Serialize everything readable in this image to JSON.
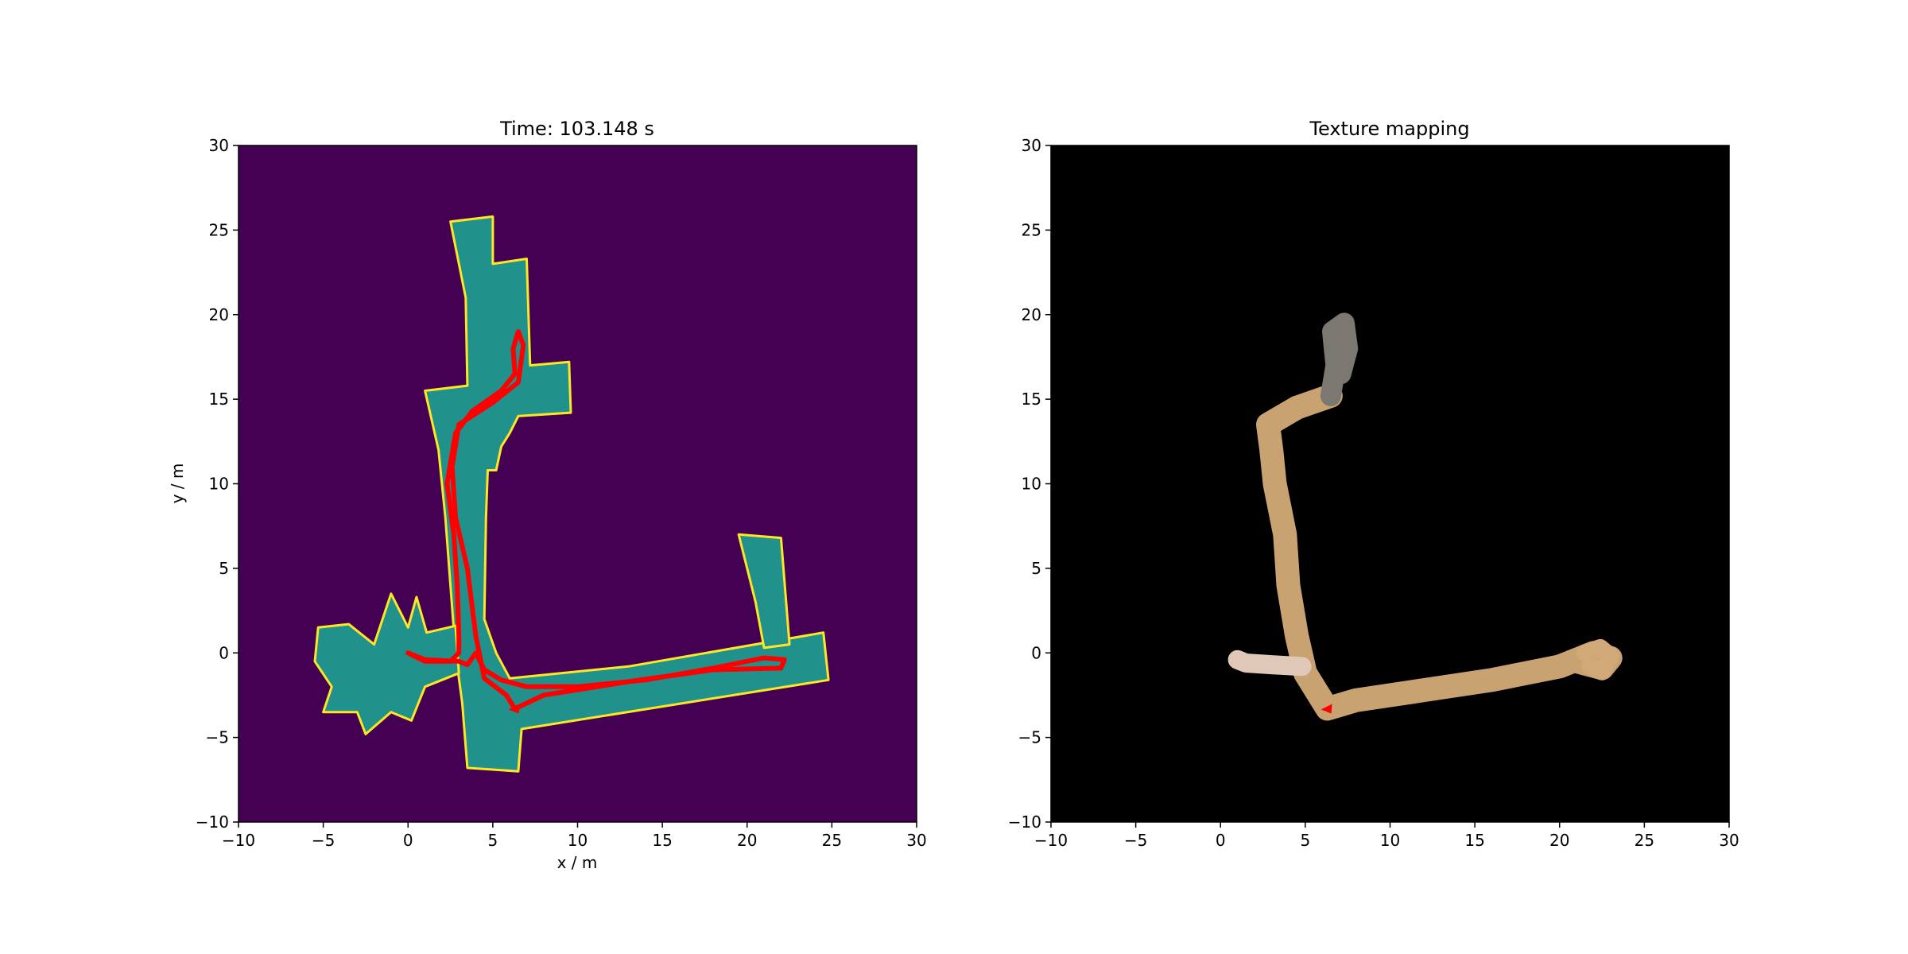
{
  "chart_data": [
    {
      "type": "heatmap",
      "title": "Time: 103.148 s",
      "xlabel": "x / m",
      "ylabel": "y / m",
      "xlim": [
        -10,
        30
      ],
      "ylim": [
        -10,
        30
      ],
      "xticks": [
        "−10",
        "−5",
        "0",
        "5",
        "10",
        "15",
        "20",
        "25",
        "30"
      ],
      "yticks": [
        "−10",
        "−5",
        "0",
        "5",
        "10",
        "15",
        "20",
        "25",
        "30"
      ],
      "colors": {
        "background": "#440154",
        "free": "#21918c",
        "occupied": "#fde725",
        "trajectory": "#ff0000"
      },
      "map_regions": [
        [
          [
            2.5,
            25.5
          ],
          [
            5,
            25.8
          ],
          [
            5,
            23
          ],
          [
            7,
            23.3
          ],
          [
            7.2,
            17
          ],
          [
            9.5,
            17.2
          ],
          [
            9.6,
            14.2
          ],
          [
            6.5,
            14
          ],
          [
            6,
            13
          ],
          [
            5.5,
            12.2
          ],
          [
            5.2,
            10.8
          ],
          [
            4.7,
            10.8
          ],
          [
            4.6,
            8
          ],
          [
            4.5,
            2
          ],
          [
            5.2,
            0
          ],
          [
            6,
            -1.5
          ],
          [
            13,
            -0.8
          ],
          [
            24.5,
            1.2
          ],
          [
            24.8,
            -1.6
          ],
          [
            6.7,
            -4.5
          ],
          [
            6.5,
            -7
          ],
          [
            3.5,
            -6.8
          ],
          [
            3.2,
            -3
          ],
          [
            2.8,
            0
          ],
          [
            2.2,
            8
          ],
          [
            1.8,
            12
          ],
          [
            1,
            15.5
          ],
          [
            3.5,
            15.8
          ],
          [
            3.4,
            21
          ],
          [
            2.5,
            25.5
          ]
        ],
        [
          [
            -5.3,
            1.5
          ],
          [
            -3.5,
            1.7
          ],
          [
            -2,
            0.5
          ],
          [
            -1,
            3.5
          ],
          [
            0,
            1.5
          ],
          [
            0.5,
            3.3
          ],
          [
            1.1,
            1.2
          ],
          [
            2.8,
            1.6
          ],
          [
            3,
            -1.2
          ],
          [
            1,
            -2
          ],
          [
            0.2,
            -4
          ],
          [
            -1,
            -3.5
          ],
          [
            -2.5,
            -4.8
          ],
          [
            -3,
            -3.5
          ],
          [
            -5,
            -3.5
          ],
          [
            -4.5,
            -2
          ],
          [
            -5.5,
            -0.5
          ],
          [
            -5.3,
            1.5
          ]
        ],
        [
          [
            19.5,
            7
          ],
          [
            22,
            6.8
          ],
          [
            22.5,
            0.5
          ],
          [
            21,
            0.3
          ],
          [
            20.5,
            3
          ],
          [
            19.5,
            7
          ]
        ]
      ],
      "trajectory": [
        [
          0,
          0
        ],
        [
          1,
          -0.4
        ],
        [
          3,
          -0.5
        ],
        [
          3.5,
          -0.7
        ],
        [
          4,
          0
        ],
        [
          4.5,
          -1
        ],
        [
          5.5,
          -1.6
        ],
        [
          7,
          -2
        ],
        [
          10,
          -2
        ],
        [
          14,
          -1.6
        ],
        [
          18,
          -0.9
        ],
        [
          21,
          -0.3
        ],
        [
          22.2,
          -0.4
        ],
        [
          22,
          -0.9
        ],
        [
          18,
          -1
        ],
        [
          13,
          -1.7
        ],
        [
          8,
          -2.5
        ],
        [
          6.3,
          -3.3
        ],
        [
          5.8,
          -2.5
        ],
        [
          4.5,
          -1.5
        ],
        [
          4,
          1
        ],
        [
          3.5,
          5
        ],
        [
          2.8,
          8
        ],
        [
          2.6,
          11
        ],
        [
          3,
          13.5
        ],
        [
          5,
          14.8
        ],
        [
          6.5,
          16
        ],
        [
          6.8,
          18.2
        ],
        [
          6.5,
          19
        ],
        [
          6.2,
          18
        ],
        [
          6.3,
          16.5
        ],
        [
          5.5,
          15.5
        ],
        [
          3.8,
          14.3
        ],
        [
          2.8,
          13
        ],
        [
          2.3,
          10
        ],
        [
          2.7,
          7
        ],
        [
          2.9,
          4
        ],
        [
          3,
          1
        ],
        [
          3,
          0
        ],
        [
          2.5,
          -0.5
        ],
        [
          1,
          -0.5
        ],
        [
          0,
          0
        ]
      ]
    },
    {
      "type": "heatmap",
      "title": "Texture mapping",
      "xlabel": "",
      "ylabel": "",
      "xlim": [
        -10,
        30
      ],
      "ylim": [
        -10,
        30
      ],
      "xticks": [
        "−10",
        "−5",
        "0",
        "5",
        "10",
        "15",
        "20",
        "25",
        "30"
      ],
      "yticks": [
        "−10",
        "−5",
        "0",
        "5",
        "10",
        "15",
        "20",
        "25",
        "30"
      ],
      "colors": {
        "background": "#000000",
        "texture": "#c9a271",
        "loop_top": "#7a7870",
        "robot": "#ff0000"
      },
      "robot_position": [
        6.3,
        -3.3
      ]
    }
  ]
}
